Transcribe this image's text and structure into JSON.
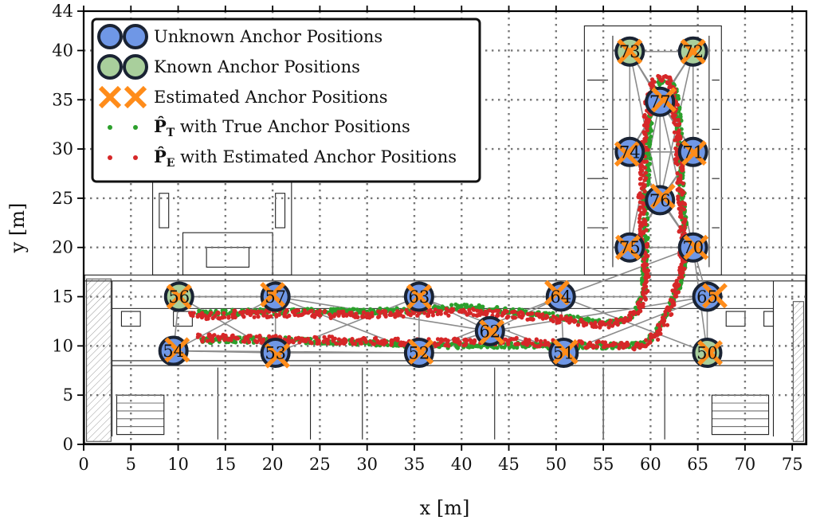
{
  "chart_data": {
    "type": "scatter",
    "xlabel": "x [m]",
    "ylabel": "y [m]",
    "xlim": [
      0,
      76.5
    ],
    "ylim": [
      0,
      44
    ],
    "xticks": [
      0,
      5,
      10,
      15,
      20,
      25,
      30,
      35,
      40,
      45,
      50,
      55,
      60,
      65,
      70,
      75
    ],
    "yticks": [
      0,
      5,
      10,
      15,
      20,
      25,
      30,
      35,
      40,
      44
    ],
    "grid": true,
    "legend_position": "top-left",
    "legend": [
      {
        "label": "Unknown Anchor Positions",
        "marker": "circle",
        "color": "#6f97e6"
      },
      {
        "label": "Known Anchor Positions",
        "marker": "circle",
        "color": "#a9cf9c"
      },
      {
        "label": "Estimated Anchor Positions",
        "marker": "x",
        "color": "#ff8c1a"
      },
      {
        "label_symbol": "P̂",
        "label_subscript": "T",
        "label_rest": " with True Anchor Positions",
        "marker": "dot",
        "color": "#2ca02c"
      },
      {
        "label_symbol": "P̂",
        "label_subscript": "E",
        "label_rest": " with Estimated Anchor Positions",
        "marker": "dot",
        "color": "#d62728"
      }
    ],
    "anchors": [
      {
        "id": "50",
        "x": 66.0,
        "y": 9.3,
        "known": true
      },
      {
        "id": "51",
        "x": 50.8,
        "y": 9.3,
        "known": false
      },
      {
        "id": "52",
        "x": 35.5,
        "y": 9.3,
        "known": false
      },
      {
        "id": "53",
        "x": 20.3,
        "y": 9.3,
        "known": false
      },
      {
        "id": "54",
        "x": 9.5,
        "y": 9.5,
        "known": false
      },
      {
        "id": "56",
        "x": 10.1,
        "y": 15.0,
        "known": true
      },
      {
        "id": "57",
        "x": 20.3,
        "y": 15.0,
        "known": false
      },
      {
        "id": "62",
        "x": 43.0,
        "y": 11.5,
        "known": false
      },
      {
        "id": "63",
        "x": 35.5,
        "y": 15.0,
        "known": false
      },
      {
        "id": "64",
        "x": 50.5,
        "y": 15.0,
        "known": false
      },
      {
        "id": "65",
        "x": 66.0,
        "y": 15.0,
        "known": false
      },
      {
        "id": "70",
        "x": 64.5,
        "y": 20.0,
        "known": false
      },
      {
        "id": "71",
        "x": 64.5,
        "y": 29.7,
        "known": false
      },
      {
        "id": "72",
        "x": 64.5,
        "y": 39.9,
        "known": true
      },
      {
        "id": "73",
        "x": 57.8,
        "y": 39.9,
        "known": true
      },
      {
        "id": "74",
        "x": 57.8,
        "y": 29.7,
        "known": false
      },
      {
        "id": "75",
        "x": 57.8,
        "y": 20.0,
        "known": false
      },
      {
        "id": "76",
        "x": 61.0,
        "y": 24.8,
        "known": false
      },
      {
        "id": "77",
        "x": 61.0,
        "y": 34.8,
        "known": false
      }
    ],
    "estimated_offsets": {
      "50": [
        0.3,
        0.0
      ],
      "51": [
        0.2,
        0.1
      ],
      "52": [
        0.2,
        0.1
      ],
      "53": [
        0.2,
        -0.3
      ],
      "54": [
        0.4,
        0.1
      ],
      "56": [
        0.0,
        0.0
      ],
      "57": [
        -0.3,
        0.2
      ],
      "62": [
        0.2,
        -0.1
      ],
      "63": [
        0.0,
        0.0
      ],
      "64": [
        -0.4,
        0.4
      ],
      "65": [
        0.8,
        0.1
      ],
      "70": [
        0.3,
        0.0
      ],
      "71": [
        0.1,
        -0.1
      ],
      "72": [
        0.0,
        0.0
      ],
      "73": [
        0.0,
        0.0
      ],
      "74": [
        -0.3,
        -0.2
      ],
      "75": [
        -0.2,
        0.0
      ],
      "76": [
        0.3,
        0.4
      ],
      "77": [
        0.4,
        0.2
      ]
    },
    "range_links": [
      [
        "54",
        "53"
      ],
      [
        "54",
        "56"
      ],
      [
        "54",
        "57"
      ],
      [
        "54",
        "52"
      ],
      [
        "53",
        "56"
      ],
      [
        "53",
        "57"
      ],
      [
        "53",
        "52"
      ],
      [
        "53",
        "63"
      ],
      [
        "56",
        "57"
      ],
      [
        "56",
        "63"
      ],
      [
        "57",
        "63"
      ],
      [
        "57",
        "52"
      ],
      [
        "57",
        "62"
      ],
      [
        "52",
        "63"
      ],
      [
        "52",
        "62"
      ],
      [
        "52",
        "51"
      ],
      [
        "52",
        "64"
      ],
      [
        "63",
        "62"
      ],
      [
        "63",
        "64"
      ],
      [
        "63",
        "51"
      ],
      [
        "62",
        "64"
      ],
      [
        "62",
        "51"
      ],
      [
        "62",
        "65"
      ],
      [
        "51",
        "64"
      ],
      [
        "51",
        "50"
      ],
      [
        "51",
        "65"
      ],
      [
        "64",
        "65"
      ],
      [
        "64",
        "50"
      ],
      [
        "65",
        "50"
      ],
      [
        "65",
        "70"
      ],
      [
        "50",
        "70"
      ],
      [
        "70",
        "75"
      ],
      [
        "70",
        "76"
      ],
      [
        "70",
        "74"
      ],
      [
        "70",
        "71"
      ],
      [
        "70",
        "77"
      ],
      [
        "75",
        "76"
      ],
      [
        "75",
        "74"
      ],
      [
        "75",
        "71"
      ],
      [
        "75",
        "77"
      ],
      [
        "76",
        "74"
      ],
      [
        "76",
        "71"
      ],
      [
        "76",
        "77"
      ],
      [
        "74",
        "71"
      ],
      [
        "74",
        "77"
      ],
      [
        "74",
        "73"
      ],
      [
        "71",
        "77"
      ],
      [
        "71",
        "72"
      ],
      [
        "77",
        "73"
      ],
      [
        "77",
        "72"
      ],
      [
        "73",
        "72"
      ],
      [
        "74",
        "72"
      ],
      [
        "71",
        "73"
      ],
      [
        "76",
        "73"
      ],
      [
        "76",
        "72"
      ],
      [
        "64",
        "70"
      ]
    ],
    "trajectory_true": [
      [
        12.0,
        13.3
      ],
      [
        15.0,
        13.4
      ],
      [
        20.0,
        13.5
      ],
      [
        25.0,
        13.5
      ],
      [
        30.0,
        13.5
      ],
      [
        35.0,
        13.6
      ],
      [
        40.0,
        14.0
      ],
      [
        45.0,
        13.6
      ],
      [
        50.0,
        13.0
      ],
      [
        55.0,
        12.3
      ],
      [
        57.0,
        12.6
      ],
      [
        58.5,
        13.4
      ],
      [
        59.3,
        15.5
      ],
      [
        59.5,
        20.0
      ],
      [
        59.4,
        25.0
      ],
      [
        59.8,
        30.0
      ],
      [
        60.0,
        35.0
      ],
      [
        61.0,
        37.0
      ],
      [
        62.5,
        36.5
      ],
      [
        63.0,
        33.0
      ],
      [
        63.2,
        28.0
      ],
      [
        63.5,
        23.0
      ],
      [
        63.7,
        19.5
      ],
      [
        63.3,
        17.0
      ],
      [
        62.3,
        14.5
      ],
      [
        61.0,
        12.0
      ],
      [
        59.5,
        10.2
      ],
      [
        55.0,
        10.0
      ],
      [
        50.0,
        10.0
      ],
      [
        45.0,
        10.1
      ],
      [
        40.0,
        10.0
      ],
      [
        35.0,
        10.1
      ],
      [
        30.0,
        10.3
      ],
      [
        25.0,
        10.5
      ],
      [
        20.0,
        10.6
      ],
      [
        15.0,
        10.6
      ],
      [
        12.2,
        10.5
      ]
    ],
    "trajectory_estimated": [
      [
        11.5,
        13.0
      ],
      [
        15.0,
        13.2
      ],
      [
        20.0,
        13.3
      ],
      [
        25.0,
        13.2
      ],
      [
        30.0,
        13.2
      ],
      [
        35.0,
        13.3
      ],
      [
        40.0,
        13.5
      ],
      [
        45.0,
        13.2
      ],
      [
        50.0,
        12.7
      ],
      [
        55.0,
        12.2
      ],
      [
        57.5,
        12.5
      ],
      [
        58.8,
        13.6
      ],
      [
        59.5,
        16.0
      ],
      [
        59.3,
        21.0
      ],
      [
        59.0,
        25.0
      ],
      [
        59.4,
        30.0
      ],
      [
        59.8,
        35.0
      ],
      [
        60.5,
        37.0
      ],
      [
        62.0,
        37.2
      ],
      [
        62.6,
        34.0
      ],
      [
        63.0,
        29.0
      ],
      [
        63.3,
        24.0
      ],
      [
        63.4,
        19.0
      ],
      [
        63.0,
        16.5
      ],
      [
        62.0,
        13.5
      ],
      [
        60.8,
        11.2
      ],
      [
        59.0,
        10.0
      ],
      [
        55.0,
        10.1
      ],
      [
        50.0,
        10.2
      ],
      [
        45.0,
        10.5
      ],
      [
        40.0,
        10.4
      ],
      [
        35.0,
        10.3
      ],
      [
        30.0,
        10.5
      ],
      [
        25.0,
        10.6
      ],
      [
        20.0,
        10.7
      ],
      [
        15.0,
        10.8
      ],
      [
        12.0,
        10.8
      ]
    ]
  }
}
